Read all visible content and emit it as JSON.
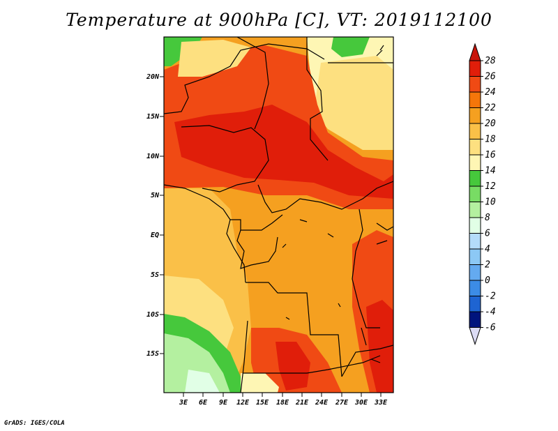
{
  "title": "Temperature at 900hPa [C], VT: 2019112100",
  "footer": "GrADS: IGES/COLA",
  "lat_labels": [
    "20N",
    "15N",
    "10N",
    "5N",
    "EQ",
    "5S",
    "10S",
    "15S"
  ],
  "lon_labels": [
    "3E",
    "6E",
    "9E",
    "12E",
    "15E",
    "18E",
    "21E",
    "24E",
    "27E",
    "30E",
    "33E"
  ],
  "colorbar": {
    "levels": [
      "28",
      "26",
      "24",
      "22",
      "20",
      "18",
      "16",
      "14",
      "12",
      "10",
      "8",
      "6",
      "4",
      "2",
      "0",
      "-2",
      "-4",
      "-6"
    ],
    "colors": [
      "#e01e0a",
      "#f04a14",
      "#f5760a",
      "#f5a020",
      "#fac048",
      "#fde080",
      "#fef6b4",
      "#46c83c",
      "#78dc64",
      "#b4f0a0",
      "#e1ffe6",
      "#b4dcfa",
      "#8cc8f5",
      "#64aaf0",
      "#3c8ce6",
      "#1e64d2",
      "#0a3cb4",
      "#00147d"
    ],
    "under_color": "#dcdcf5",
    "over_color": "#c8140a"
  },
  "map_colors": {
    "base": "#f5a020",
    "hot": "#e01e0a",
    "warm": "#f04a14",
    "mild": "#fac048",
    "cool": "#fde080",
    "pale": "#fef6b4",
    "green": "#46c83c",
    "lightgreen": "#b4f0a0",
    "paleblue": "#e1ffe6"
  }
}
